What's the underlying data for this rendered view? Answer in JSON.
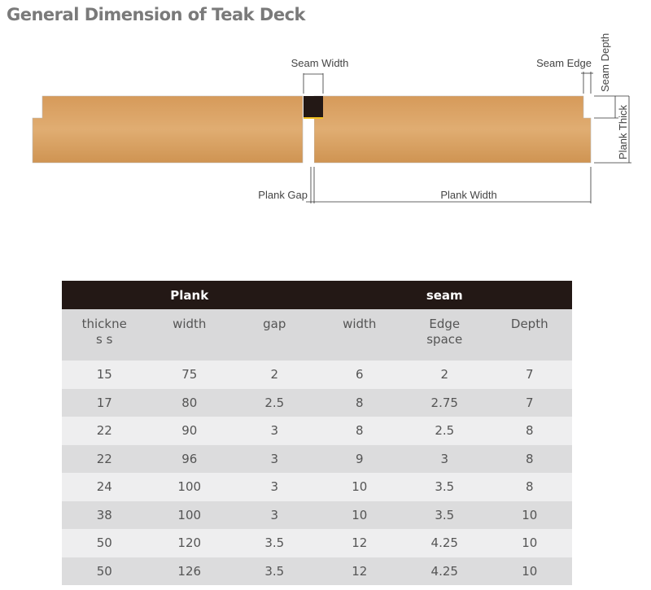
{
  "title": "General Dimension of Teak Deck",
  "diagram": {
    "labels": {
      "seam_width": "Seam Width",
      "seam_edge": "Seam Edge",
      "seam_depth": "Seam Depth",
      "plank_thick": "Plank Thick",
      "plank_gap": "Plank Gap",
      "plank_width": "Plank Width"
    },
    "colors": {
      "wood": "#d9a062",
      "seam": "#231815",
      "seam_base": "#f0c020"
    }
  },
  "table": {
    "groups": [
      "Plank",
      "seam"
    ],
    "headers": [
      "thicknes s",
      "width",
      "gap",
      "width",
      "Edge space",
      "Depth"
    ],
    "rows": [
      [
        "15",
        "75",
        "2",
        "6",
        "2",
        "7"
      ],
      [
        "17",
        "80",
        "2.5",
        "8",
        "2.75",
        "7"
      ],
      [
        "22",
        "90",
        "3",
        "8",
        "2.5",
        "8"
      ],
      [
        "22",
        "96",
        "3",
        "9",
        "3",
        "8"
      ],
      [
        "24",
        "100",
        "3",
        "10",
        "3.5",
        "8"
      ],
      [
        "38",
        "100",
        "3",
        "10",
        "3.5",
        "10"
      ],
      [
        "50",
        "120",
        "3.5",
        "12",
        "4.25",
        "10"
      ],
      [
        "50",
        "126",
        "3.5",
        "12",
        "4.25",
        "10"
      ]
    ]
  }
}
